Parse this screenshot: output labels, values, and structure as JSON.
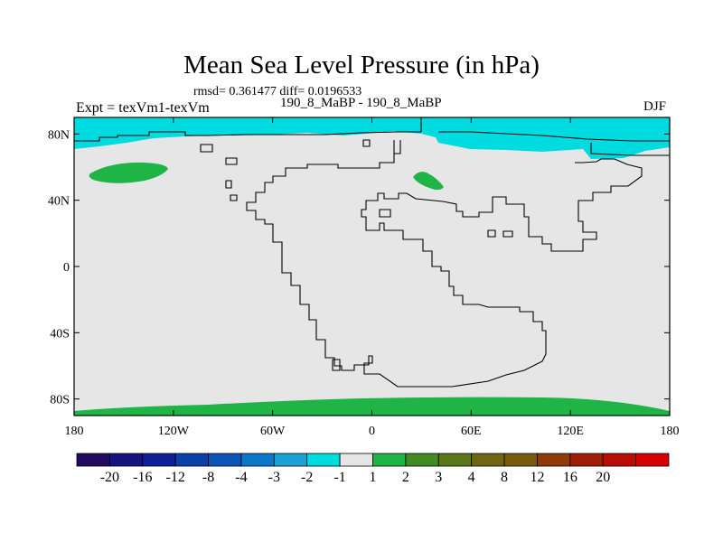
{
  "title": "Mean Sea Level Pressure (in hPa)",
  "stats_line": "rmsd= 0.361477 diff= 0.0196533",
  "expt_label": "Expt = texVm1-texVm",
  "case_label": "190_8_MaBP - 190_8_MaBP",
  "season": "DJF",
  "map": {
    "projection": "cylindrical-equidistant",
    "lon_range": [
      -180,
      180
    ],
    "lat_range": [
      -90,
      90
    ],
    "y_ticks": [
      80,
      40,
      0,
      -40,
      -80
    ],
    "y_tick_labels": [
      "80N",
      "40N",
      "0",
      "40S",
      "80S"
    ],
    "x_ticks": [
      -180,
      -120,
      -60,
      0,
      60,
      120,
      180
    ],
    "x_tick_labels": [
      "180",
      "120W",
      "60W",
      "0",
      "60E",
      "120E",
      "180"
    ],
    "background_color": "#e6e6e6"
  },
  "colorbar": {
    "colors": [
      "#230a60",
      "#161280",
      "#0f2096",
      "#0d3fa8",
      "#0b55b8",
      "#0a77c8",
      "#1aa2d6",
      "#00dbe0",
      "#e6e6e6",
      "#1fb446",
      "#418c22",
      "#5a781a",
      "#6e6614",
      "#7a5a0f",
      "#8f3a0a",
      "#a01e08",
      "#b80e06",
      "#d40202"
    ],
    "labels": [
      "-20",
      "-16",
      "-12",
      "-8",
      "-4",
      "-3",
      "-2",
      "-1",
      "1",
      "2",
      "3",
      "4",
      "8",
      "12",
      "16",
      "20"
    ]
  },
  "chart_data": {
    "type": "map",
    "title": "Mean Sea Level Pressure (in hPa)",
    "variable": "Mean Sea Level Pressure difference",
    "units": "hPa",
    "season": "DJF",
    "rmsd": 0.361477,
    "diff": 0.0196533,
    "levels": [
      -20,
      -16,
      -12,
      -8,
      -4,
      -3,
      -2,
      -1,
      1,
      2,
      3,
      4,
      8,
      12,
      16,
      20
    ],
    "regions": [
      {
        "description": "Arctic band north of ~70N",
        "range_hPa": "-2 to -1"
      },
      {
        "description": "Southern polar band south of ~80S",
        "range_hPa": "1 to 2"
      },
      {
        "description": "North Pacific patch near 50N, 150W",
        "range_hPa": "1 to 2"
      },
      {
        "description": "Eurasian patch near 50N, 35E",
        "range_hPa": "1 to 2"
      },
      {
        "description": "Rest of globe",
        "range_hPa": "-1 to 1"
      }
    ]
  }
}
